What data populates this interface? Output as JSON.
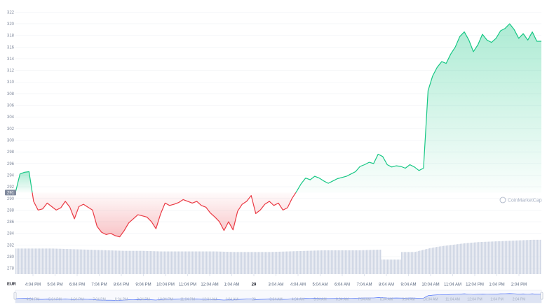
{
  "watermark": "CoinMarketCap",
  "currency_label": "EUR",
  "current_price_badge": "291",
  "colors": {
    "up": "#16c784",
    "down": "#ea3943",
    "volume": "#cfd6e4",
    "grid": "#eff2f5",
    "badge": "#808a9d",
    "navigator_fill": "#dde3f3",
    "navigator_line": "#3861fb"
  },
  "chart_data": {
    "type": "line",
    "title": "",
    "xlabel": "",
    "ylabel": "",
    "ylim": [
      277,
      323
    ],
    "reference_price": 291,
    "y_ticks": [
      "322",
      "320",
      "318",
      "316",
      "314",
      "312",
      "310",
      "308",
      "306",
      "304",
      "302",
      "300",
      "298",
      "296",
      "294",
      "292",
      "290",
      "288",
      "286",
      "284",
      "282",
      "280",
      "278"
    ],
    "x_ticks": [
      "4:04 PM",
      "5:04 PM",
      "6:04 PM",
      "7:04 PM",
      "8:04 PM",
      "9:04 PM",
      "10:04 PM",
      "11:04 PM",
      "12:04 AM",
      "1:04 AM",
      "29",
      "3:04 AM",
      "4:04 AM",
      "5:04 AM",
      "6:04 AM",
      "7:04 AM",
      "8:04 AM",
      "9:04 AM",
      "10:04 AM",
      "11:04 AM",
      "12:04 PM",
      "1:04 PM",
      "2:04 PM"
    ],
    "x_start_hours": 14.8,
    "x_end_hours": 38.0,
    "price_series": {
      "x": [
        14.8,
        15.0,
        15.2,
        15.4,
        15.6,
        15.8,
        16.0,
        16.2,
        16.4,
        16.6,
        16.8,
        17.0,
        17.2,
        17.4,
        17.6,
        17.8,
        18.0,
        18.2,
        18.4,
        18.6,
        18.8,
        19.0,
        19.2,
        19.4,
        19.6,
        19.8,
        20.0,
        20.2,
        20.4,
        20.6,
        20.8,
        21.0,
        21.2,
        21.4,
        21.6,
        21.8,
        22.0,
        22.2,
        22.4,
        22.6,
        22.8,
        23.0,
        23.2,
        23.4,
        23.6,
        23.8,
        24.0,
        24.2,
        24.4,
        24.6,
        24.8,
        25.0,
        25.2,
        25.4,
        25.6,
        25.8,
        26.0,
        26.2,
        26.4,
        26.6,
        26.8,
        27.0,
        27.2,
        27.4,
        27.6,
        27.8,
        28.0,
        28.2,
        28.4,
        28.6,
        28.8,
        29.0,
        29.2,
        29.4,
        29.6,
        29.8,
        30.0,
        30.2,
        30.4,
        30.6,
        30.8,
        31.0,
        31.2,
        31.4,
        31.6,
        31.8,
        32.0,
        32.2,
        32.4,
        32.6,
        32.8,
        33.0,
        33.2,
        33.4,
        33.6,
        33.8,
        34.0,
        34.2,
        34.4,
        34.6,
        34.8,
        35.0,
        35.2,
        35.4,
        35.6,
        35.8,
        36.0,
        36.2,
        36.4,
        36.6,
        36.8,
        37.0,
        37.2,
        37.4,
        37.6,
        37.8,
        38.0
      ],
      "y": [
        291.0,
        294.2,
        294.5,
        294.6,
        289.5,
        288.0,
        288.2,
        289.2,
        288.6,
        288.0,
        288.4,
        289.5,
        288.5,
        286.5,
        288.6,
        289.0,
        288.5,
        288.0,
        285.2,
        284.2,
        283.8,
        284.0,
        283.6,
        283.4,
        284.5,
        285.8,
        286.5,
        287.2,
        287.0,
        286.8,
        286.0,
        284.8,
        287.3,
        289.2,
        288.8,
        289.0,
        289.3,
        289.8,
        289.5,
        289.2,
        289.5,
        288.8,
        288.5,
        287.5,
        286.8,
        286.0,
        284.5,
        286.0,
        284.6,
        287.8,
        289.0,
        289.5,
        290.5,
        287.4,
        288.0,
        289.0,
        289.5,
        288.8,
        289.2,
        288.0,
        288.4,
        290.0,
        291.2,
        292.5,
        293.5,
        293.2,
        293.8,
        293.5,
        293.0,
        292.6,
        293.0,
        293.4,
        293.6,
        293.8,
        294.2,
        294.6,
        295.5,
        295.8,
        296.2,
        296.0,
        297.6,
        297.2,
        295.8,
        295.4,
        295.6,
        295.5,
        295.2,
        295.8,
        295.4,
        294.8,
        295.2,
        308.5,
        311.0,
        312.5,
        313.5,
        313.2,
        314.8,
        316.0,
        317.8,
        318.6,
        317.2,
        315.2,
        316.4,
        318.2,
        317.2,
        316.8,
        317.5,
        318.8,
        319.2,
        320.0,
        319.0,
        317.5,
        318.3,
        317.2,
        318.6,
        317.0,
        317.0
      ]
    },
    "volume_series": {
      "x": [
        14.8,
        15.6,
        16.4,
        17.2,
        18.0,
        18.8,
        19.6,
        20.4,
        21.2,
        22.0,
        22.8,
        23.6,
        24.4,
        25.2,
        26.0,
        26.8,
        27.6,
        28.4,
        29.2,
        30.0,
        30.8,
        31.0,
        31.6,
        32.0,
        32.4,
        33.0,
        33.4,
        34.0,
        34.6,
        35.2,
        35.8,
        36.4,
        37.0,
        37.6,
        38.0
      ],
      "y": [
        281.4,
        281.4,
        281.4,
        281.3,
        281.2,
        281.1,
        281.0,
        281.0,
        280.9,
        280.9,
        280.9,
        280.9,
        280.8,
        280.8,
        280.8,
        280.9,
        281.0,
        281.1,
        281.1,
        281.1,
        281.2,
        279.5,
        279.5,
        280.8,
        280.8,
        281.4,
        281.7,
        282.0,
        282.3,
        282.5,
        282.6,
        282.7,
        282.8,
        282.9,
        282.9
      ]
    }
  }
}
